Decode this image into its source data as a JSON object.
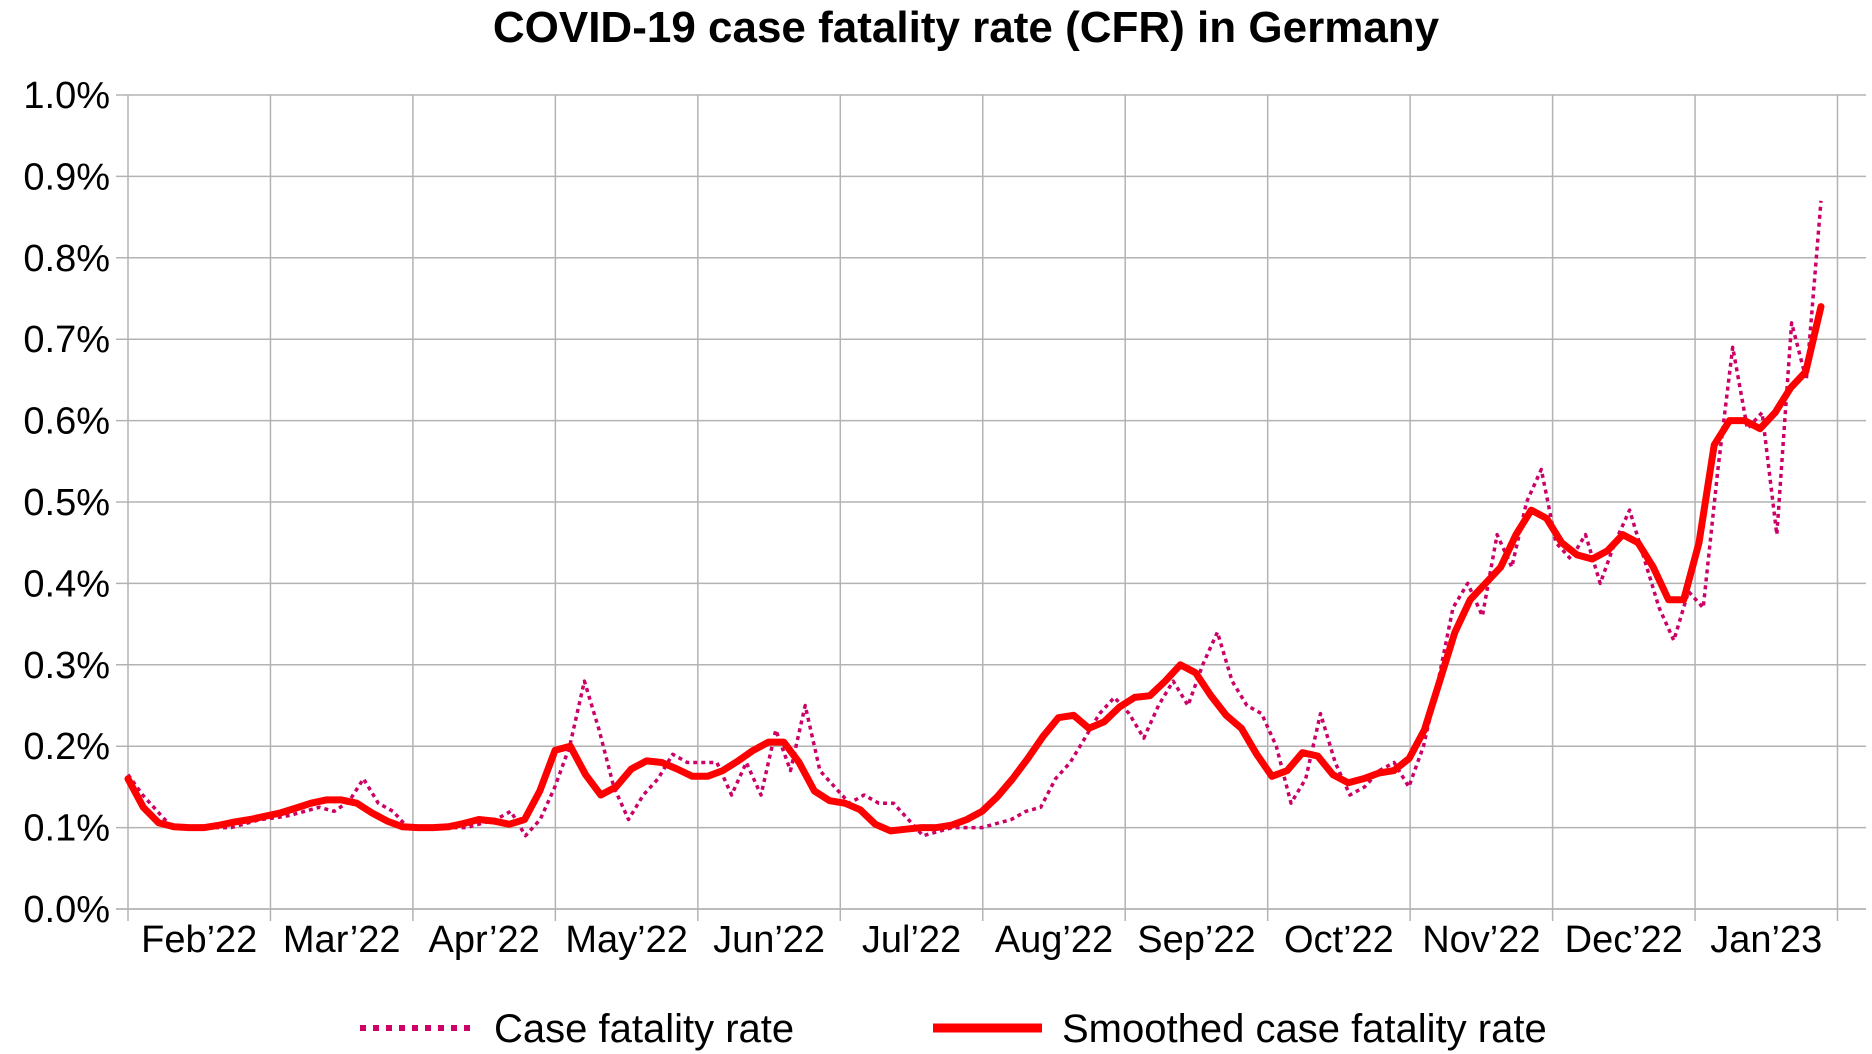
{
  "chart_data": {
    "type": "line",
    "title": "COVID-19 case fatality rate (CFR) in Germany",
    "xlabel": "",
    "ylabel": "",
    "ylim": [
      0,
      0.01
    ],
    "y_ticks": [
      "0.0%",
      "0.1%",
      "0.2%",
      "0.3%",
      "0.4%",
      "0.5%",
      "0.6%",
      "0.7%",
      "0.8%",
      "0.9%",
      "1.0%"
    ],
    "x_ticks": [
      "Feb’22",
      "Mar’22",
      "Apr’22",
      "May’22",
      "Jun’22",
      "Jul’22",
      "Aug’22",
      "Sep’22",
      "Oct’22",
      "Nov’22",
      "Dec’22",
      "Jan’23"
    ],
    "grid": true,
    "legend_position": "bottom",
    "series": [
      {
        "name": "Case fatality rate",
        "color": "#cc0066",
        "style": "dotted",
        "values": [
          0.00165,
          0.0014,
          0.0012,
          0.001,
          0.001,
          0.00102,
          0.001,
          0.001,
          0.00105,
          0.0011,
          0.00112,
          0.00115,
          0.0012,
          0.00125,
          0.0012,
          0.00132,
          0.0016,
          0.0013,
          0.0012,
          0.001,
          0.001,
          0.001,
          0.001,
          0.001,
          0.00105,
          0.0011,
          0.0012,
          0.0009,
          0.0011,
          0.0015,
          0.002,
          0.0028,
          0.0022,
          0.0015,
          0.0011,
          0.0014,
          0.0016,
          0.0019,
          0.0018,
          0.0018,
          0.0018,
          0.0014,
          0.0018,
          0.0014,
          0.0022,
          0.0017,
          0.0025,
          0.0017,
          0.0015,
          0.0013,
          0.0014,
          0.0013,
          0.0013,
          0.0011,
          0.0009,
          0.00095,
          0.001,
          0.001,
          0.001,
          0.00105,
          0.0011,
          0.0012,
          0.00125,
          0.0016,
          0.0018,
          0.0021,
          0.0024,
          0.0026,
          0.0024,
          0.0021,
          0.0025,
          0.0028,
          0.0025,
          0.003,
          0.0034,
          0.0028,
          0.0025,
          0.0024,
          0.002,
          0.0013,
          0.0016,
          0.0024,
          0.0018,
          0.0014,
          0.0015,
          0.0017,
          0.0018,
          0.0015,
          0.002,
          0.0028,
          0.0037,
          0.004,
          0.0036,
          0.0046,
          0.0042,
          0.005,
          0.0054,
          0.0045,
          0.0043,
          0.0046,
          0.004,
          0.0045,
          0.0049,
          0.0043,
          0.0037,
          0.0033,
          0.0039,
          0.0037,
          0.0054,
          0.0069,
          0.0059,
          0.0061,
          0.0046,
          0.0072,
          0.0065,
          0.0087
        ]
      },
      {
        "name": "Smoothed case fatality rate",
        "color": "#ff0000",
        "style": "solid",
        "values": [
          0.0016,
          0.00125,
          0.00106,
          0.00101,
          0.001,
          0.001,
          0.00103,
          0.00107,
          0.0011,
          0.00114,
          0.00118,
          0.00124,
          0.0013,
          0.00134,
          0.00134,
          0.0013,
          0.00118,
          0.00108,
          0.00101,
          0.001,
          0.001,
          0.00101,
          0.00105,
          0.0011,
          0.00108,
          0.00104,
          0.0011,
          0.00145,
          0.00195,
          0.002,
          0.00165,
          0.0014,
          0.0015,
          0.00172,
          0.00182,
          0.0018,
          0.00172,
          0.00163,
          0.00163,
          0.0017,
          0.00182,
          0.00195,
          0.00205,
          0.00205,
          0.0018,
          0.00145,
          0.00133,
          0.0013,
          0.00122,
          0.00104,
          0.00096,
          0.00098,
          0.001,
          0.001,
          0.00103,
          0.0011,
          0.0012,
          0.00138,
          0.0016,
          0.00185,
          0.00212,
          0.00235,
          0.00238,
          0.00222,
          0.0023,
          0.00248,
          0.0026,
          0.00262,
          0.0028,
          0.003,
          0.0029,
          0.00262,
          0.00238,
          0.00222,
          0.0019,
          0.00163,
          0.0017,
          0.00192,
          0.00188,
          0.00165,
          0.00155,
          0.0016,
          0.00167,
          0.0017,
          0.00185,
          0.0022,
          0.0028,
          0.0034,
          0.0038,
          0.004,
          0.0042,
          0.0046,
          0.0049,
          0.0048,
          0.0045,
          0.00435,
          0.0043,
          0.0044,
          0.0046,
          0.0045,
          0.0042,
          0.0038,
          0.0038,
          0.0045,
          0.0057,
          0.006,
          0.006,
          0.0059,
          0.0061,
          0.0064,
          0.0066,
          0.0074
        ]
      }
    ]
  }
}
